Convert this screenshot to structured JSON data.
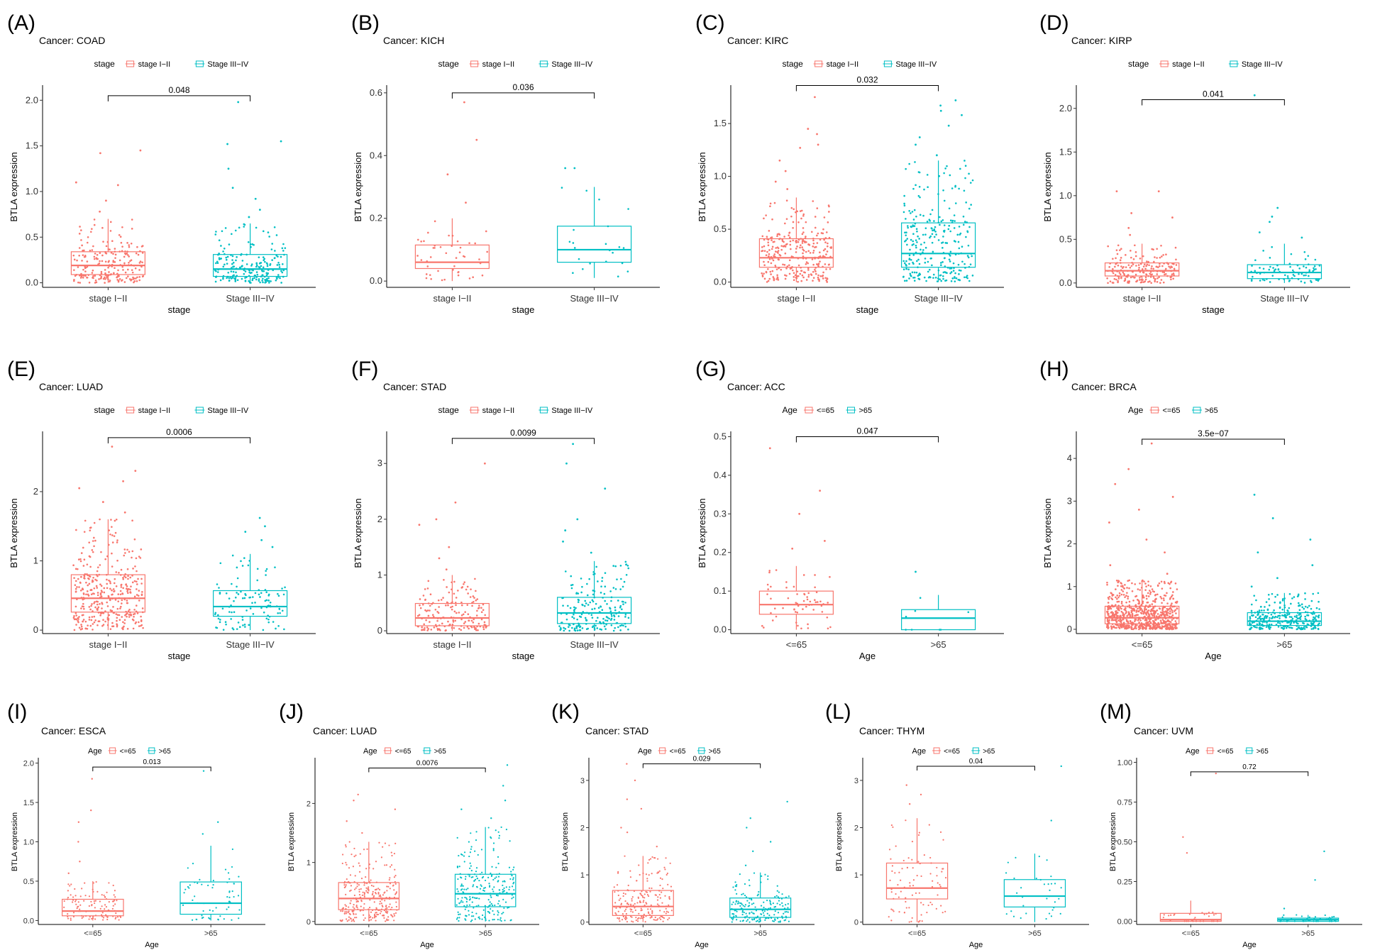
{
  "colors": {
    "group1": "#F8766D",
    "group2": "#00BFC4",
    "axis": "#000000"
  },
  "chart_data": [
    {
      "letter": "(A)",
      "title": "Cancer: COAD",
      "legend_title": "stage",
      "type": "box",
      "ylabel": "BTLA expression",
      "xlabel": "stage",
      "categories": [
        "stage I−II",
        "Stage III−IV"
      ],
      "ylim": [
        -0.05,
        2.15
      ],
      "yticks": [
        0.0,
        0.5,
        1.0,
        1.5,
        2.0
      ],
      "ytick_labels": [
        "0.0",
        "0.5",
        "1.0",
        "1.5",
        "2.0"
      ],
      "pvalue": "0.048",
      "bracket_y": 2.05,
      "boxes": [
        {
          "q1": 0.09,
          "median": 0.19,
          "q3": 0.34,
          "whisker_low": 0.0,
          "whisker_high": 0.7,
          "n": 220,
          "outliers": [
            0.78,
            0.9,
            1.07,
            1.1,
            1.42,
            1.45
          ]
        },
        {
          "q1": 0.07,
          "median": 0.15,
          "q3": 0.31,
          "whisker_low": 0.0,
          "whisker_high": 0.65,
          "n": 210,
          "outliers": [
            0.72,
            0.8,
            0.92,
            1.04,
            1.25,
            1.52,
            1.55,
            1.98
          ]
        }
      ]
    },
    {
      "letter": "(B)",
      "title": "Cancer: KICH",
      "legend_title": "stage",
      "type": "box",
      "ylabel": "BTLA expression",
      "xlabel": "stage",
      "categories": [
        "stage I−II",
        "Stage III−IV"
      ],
      "ylim": [
        -0.02,
        0.62
      ],
      "yticks": [
        0.0,
        0.2,
        0.4,
        0.6
      ],
      "ytick_labels": [
        "0.0",
        "0.2",
        "0.4",
        "0.6"
      ],
      "pvalue": "0.036",
      "bracket_y": 0.6,
      "boxes": [
        {
          "q1": 0.04,
          "median": 0.06,
          "q3": 0.115,
          "whisker_low": 0.0,
          "whisker_high": 0.2,
          "n": 45,
          "outliers": [
            0.25,
            0.34,
            0.45,
            0.57
          ]
        },
        {
          "q1": 0.06,
          "median": 0.1,
          "q3": 0.175,
          "whisker_low": 0.01,
          "whisker_high": 0.3,
          "n": 22,
          "outliers": [
            0.36,
            0.36
          ]
        }
      ]
    },
    {
      "letter": "(C)",
      "title": "Cancer: KIRC",
      "legend_title": "stage",
      "type": "box",
      "ylabel": "BTLA expression",
      "xlabel": "stage",
      "categories": [
        "stage I−II",
        "Stage III−IV"
      ],
      "ylim": [
        -0.05,
        1.85
      ],
      "yticks": [
        0.0,
        0.5,
        1.0,
        1.5
      ],
      "ytick_labels": [
        "0.0",
        "0.5",
        "1.0",
        "1.5"
      ],
      "pvalue": "0.032",
      "bracket_y": 1.86,
      "boxes": [
        {
          "q1": 0.14,
          "median": 0.23,
          "q3": 0.41,
          "whisker_low": 0.0,
          "whisker_high": 0.8,
          "n": 300,
          "outliers": [
            0.88,
            0.95,
            1.05,
            1.15,
            1.27,
            1.3,
            1.4,
            1.45,
            1.75
          ]
        },
        {
          "q1": 0.14,
          "median": 0.27,
          "q3": 0.56,
          "whisker_low": 0.0,
          "whisker_high": 1.15,
          "n": 280,
          "outliers": [
            1.2,
            1.3,
            1.37,
            1.48,
            1.58,
            1.62,
            1.67,
            1.72
          ]
        }
      ]
    },
    {
      "letter": "(D)",
      "title": "Cancer: KIRP",
      "legend_title": "stage",
      "type": "box",
      "ylabel": "BTLA expression",
      "xlabel": "stage",
      "categories": [
        "stage I−II",
        "Stage III−IV"
      ],
      "ylim": [
        -0.05,
        2.25
      ],
      "yticks": [
        0.0,
        0.5,
        1.0,
        1.5,
        2.0
      ],
      "ytick_labels": [
        "0.0",
        "0.5",
        "1.0",
        "1.5",
        "2.0"
      ],
      "pvalue": "0.041",
      "bracket_y": 2.1,
      "boxes": [
        {
          "q1": 0.08,
          "median": 0.14,
          "q3": 0.23,
          "whisker_low": 0.0,
          "whisker_high": 0.45,
          "n": 190,
          "outliers": [
            0.55,
            0.63,
            0.75,
            0.8,
            1.05,
            1.05
          ]
        },
        {
          "q1": 0.05,
          "median": 0.12,
          "q3": 0.21,
          "whisker_low": 0.0,
          "whisker_high": 0.45,
          "n": 80,
          "outliers": [
            0.52,
            0.58,
            0.7,
            0.76,
            0.86,
            2.15
          ]
        }
      ]
    },
    {
      "letter": "(E)",
      "title": "Cancer: LUAD",
      "legend_title": "stage",
      "type": "box",
      "ylabel": "BTLA expression",
      "xlabel": "stage",
      "categories": [
        "stage I−II",
        "Stage III−IV"
      ],
      "ylim": [
        -0.05,
        2.85
      ],
      "yticks": [
        0,
        1,
        2
      ],
      "ytick_labels": [
        "0",
        "1",
        "2"
      ],
      "pvalue": "0.0006",
      "bracket_y": 2.78,
      "boxes": [
        {
          "q1": 0.26,
          "median": 0.46,
          "q3": 0.8,
          "whisker_low": 0.0,
          "whisker_high": 1.6,
          "n": 380,
          "outliers": [
            1.7,
            1.85,
            2.05,
            2.15,
            2.3,
            2.65
          ]
        },
        {
          "q1": 0.2,
          "median": 0.34,
          "q3": 0.57,
          "whisker_low": 0.0,
          "whisker_high": 1.1,
          "n": 110,
          "outliers": [
            1.2,
            1.3,
            1.42,
            1.5,
            1.62
          ]
        }
      ]
    },
    {
      "letter": "(F)",
      "title": "Cancer: STAD",
      "legend_title": "stage",
      "type": "box",
      "ylabel": "BTLA expression",
      "xlabel": "stage",
      "categories": [
        "stage I−II",
        "Stage III−IV"
      ],
      "ylim": [
        -0.05,
        3.55
      ],
      "yticks": [
        0,
        1,
        2,
        3
      ],
      "ytick_labels": [
        "0",
        "1",
        "2",
        "3"
      ],
      "pvalue": "0.0099",
      "bracket_y": 3.45,
      "boxes": [
        {
          "q1": 0.09,
          "median": 0.23,
          "q3": 0.49,
          "whisker_low": 0.0,
          "whisker_high": 1.0,
          "n": 170,
          "outliers": [
            1.1,
            1.3,
            1.5,
            1.9,
            2.0,
            2.3,
            3.0
          ]
        },
        {
          "q1": 0.13,
          "median": 0.32,
          "q3": 0.6,
          "whisker_low": 0.0,
          "whisker_high": 1.25,
          "n": 200,
          "outliers": [
            1.4,
            1.6,
            1.8,
            2.0,
            2.55,
            3.0,
            3.35
          ]
        }
      ]
    },
    {
      "letter": "(G)",
      "title": "Cancer: ACC",
      "legend_title": "Age",
      "type": "box",
      "ylabel": "BTLA expression",
      "xlabel": "Age",
      "categories": [
        "<=65",
        ">65"
      ],
      "ylim": [
        -0.01,
        0.51
      ],
      "yticks": [
        0.0,
        0.1,
        0.2,
        0.3,
        0.4,
        0.5
      ],
      "ytick_labels": [
        "0.0",
        "0.1",
        "0.2",
        "0.3",
        "0.4",
        "0.5"
      ],
      "pvalue": "0.047",
      "bracket_y": 0.5,
      "boxes": [
        {
          "q1": 0.04,
          "median": 0.065,
          "q3": 0.1,
          "whisker_low": 0.0,
          "whisker_high": 0.165,
          "n": 60,
          "outliers": [
            0.21,
            0.23,
            0.3,
            0.36,
            0.47
          ]
        },
        {
          "q1": 0.0,
          "median": 0.03,
          "q3": 0.052,
          "whisker_low": 0.0,
          "whisker_high": 0.09,
          "n": 8,
          "outliers": [
            0.15
          ]
        }
      ]
    },
    {
      "letter": "(H)",
      "title": "Cancer: BRCA",
      "legend_title": "Age",
      "type": "box",
      "ylabel": "BTLA expression",
      "xlabel": "Age",
      "categories": [
        "<=65",
        ">65"
      ],
      "ylim": [
        -0.1,
        4.6
      ],
      "yticks": [
        0,
        1,
        2,
        3,
        4
      ],
      "ytick_labels": [
        "0",
        "1",
        "2",
        "3",
        "4"
      ],
      "pvalue": "3.5e−07",
      "bracket_y": 4.45,
      "boxes": [
        {
          "q1": 0.13,
          "median": 0.27,
          "q3": 0.54,
          "whisker_low": 0.0,
          "whisker_high": 1.15,
          "n": 700,
          "outliers": [
            1.3,
            1.5,
            1.8,
            2.1,
            2.5,
            2.8,
            3.1,
            3.4,
            3.75,
            4.35
          ]
        },
        {
          "q1": 0.09,
          "median": 0.19,
          "q3": 0.39,
          "whisker_low": 0.0,
          "whisker_high": 0.85,
          "n": 280,
          "outliers": [
            1.0,
            1.2,
            1.5,
            1.8,
            2.1,
            2.6,
            3.15
          ]
        }
      ]
    },
    {
      "letter": "(I)",
      "title": "Cancer: ESCA",
      "legend_title": "Age",
      "type": "box",
      "ylabel": "BTLA expression",
      "xlabel": "Age",
      "categories": [
        "<=65",
        ">65"
      ],
      "ylim": [
        -0.05,
        2.05
      ],
      "yticks": [
        0.0,
        0.5,
        1.0,
        1.5,
        2.0
      ],
      "ytick_labels": [
        "0.0",
        "0.5",
        "1.0",
        "1.5",
        "2.0"
      ],
      "pvalue": "0.013",
      "bracket_y": 1.95,
      "boxes": [
        {
          "q1": 0.06,
          "median": 0.12,
          "q3": 0.27,
          "whisker_low": 0.0,
          "whisker_high": 0.5,
          "n": 110,
          "outliers": [
            0.6,
            0.75,
            1.0,
            1.25,
            1.4,
            1.8
          ]
        },
        {
          "q1": 0.08,
          "median": 0.22,
          "q3": 0.49,
          "whisker_low": 0.0,
          "whisker_high": 0.95,
          "n": 60,
          "outliers": [
            1.1,
            1.25,
            1.9
          ]
        }
      ]
    },
    {
      "letter": "(J)",
      "title": "Cancer: LUAD",
      "legend_title": "Age",
      "type": "box",
      "ylabel": "BTLA expression",
      "xlabel": "Age",
      "categories": [
        "<=65",
        ">65"
      ],
      "ylim": [
        -0.05,
        2.75
      ],
      "yticks": [
        0,
        1,
        2
      ],
      "ytick_labels": [
        "0",
        "1",
        "2"
      ],
      "pvalue": "0.0076",
      "bracket_y": 2.6,
      "boxes": [
        {
          "q1": 0.2,
          "median": 0.39,
          "q3": 0.66,
          "whisker_low": 0.0,
          "whisker_high": 1.35,
          "n": 280,
          "outliers": [
            1.5,
            1.7,
            1.9,
            2.05,
            2.15
          ]
        },
        {
          "q1": 0.25,
          "median": 0.47,
          "q3": 0.8,
          "whisker_low": 0.0,
          "whisker_high": 1.6,
          "n": 250,
          "outliers": [
            1.75,
            1.9,
            2.05,
            2.3,
            2.65
          ]
        }
      ]
    },
    {
      "letter": "(K)",
      "title": "Cancer: STAD",
      "legend_title": "Age",
      "type": "box",
      "ylabel": "BTLA expression",
      "xlabel": "Age",
      "categories": [
        "<=65",
        ">65"
      ],
      "ylim": [
        -0.05,
        3.45
      ],
      "yticks": [
        0,
        1,
        2,
        3
      ],
      "ytick_labels": [
        "0",
        "1",
        "2",
        "3"
      ],
      "pvalue": "0.029",
      "bracket_y": 3.35,
      "boxes": [
        {
          "q1": 0.14,
          "median": 0.33,
          "q3": 0.67,
          "whisker_low": 0.0,
          "whisker_high": 1.4,
          "n": 200,
          "outliers": [
            1.6,
            1.9,
            2.0,
            2.4,
            2.6,
            3.0,
            3.35
          ]
        },
        {
          "q1": 0.1,
          "median": 0.27,
          "q3": 0.51,
          "whisker_low": 0.0,
          "whisker_high": 1.05,
          "n": 180,
          "outliers": [
            1.2,
            1.5,
            1.7,
            2.0,
            2.2,
            2.55
          ]
        }
      ]
    },
    {
      "letter": "(L)",
      "title": "Cancer: THYM",
      "legend_title": "Age",
      "type": "box",
      "ylabel": "BTLA expression",
      "xlabel": "Age",
      "categories": [
        "<=65",
        ">65"
      ],
      "ylim": [
        -0.05,
        3.45
      ],
      "yticks": [
        0,
        1,
        2,
        3
      ],
      "ytick_labels": [
        "0",
        "1",
        "2",
        "3"
      ],
      "pvalue": "0.04",
      "bracket_y": 3.3,
      "boxes": [
        {
          "q1": 0.49,
          "median": 0.72,
          "q3": 1.25,
          "whisker_low": 0.0,
          "whisker_high": 2.2,
          "n": 90,
          "outliers": [
            2.5,
            2.7,
            2.9
          ]
        },
        {
          "q1": 0.32,
          "median": 0.55,
          "q3": 0.9,
          "whisker_low": 0.0,
          "whisker_high": 1.45,
          "n": 35,
          "outliers": [
            2.15,
            3.3
          ]
        }
      ]
    },
    {
      "letter": "(M)",
      "title": "Cancer: UVM",
      "legend_title": "Age",
      "type": "box",
      "ylabel": "BTLA expression",
      "xlabel": "Age",
      "categories": [
        "<=65",
        ">65"
      ],
      "ylim": [
        -0.02,
        1.02
      ],
      "yticks": [
        0.0,
        0.25,
        0.5,
        0.75,
        1.0
      ],
      "ytick_labels": [
        "0.00",
        "0.25",
        "0.50",
        "0.75",
        "1.00"
      ],
      "pvalue": "0.72",
      "bracket_y": 0.94,
      "boxes": [
        {
          "q1": 0.0,
          "median": 0.01,
          "q3": 0.05,
          "whisker_low": 0.0,
          "whisker_high": 0.13,
          "n": 30,
          "outliers": [
            0.43,
            0.53,
            0.93
          ]
        },
        {
          "q1": 0.0,
          "median": 0.01,
          "q3": 0.02,
          "whisker_low": 0.0,
          "whisker_high": 0.04,
          "n": 45,
          "outliers": [
            0.08,
            0.26,
            0.44
          ]
        }
      ]
    }
  ]
}
